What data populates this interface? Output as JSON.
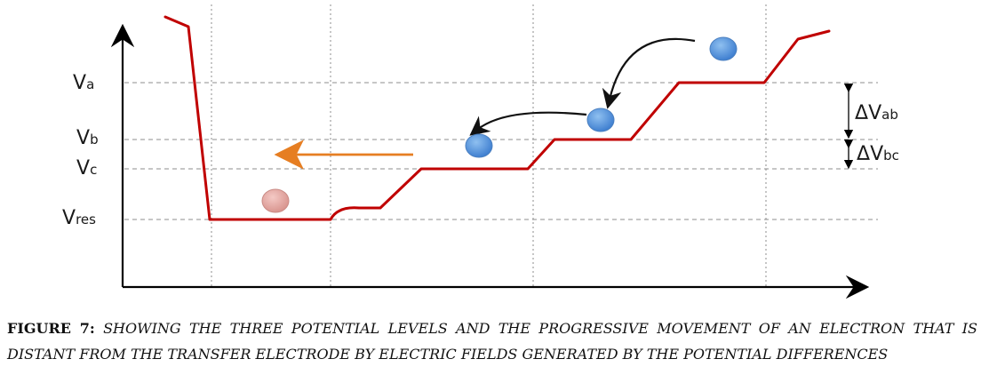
{
  "levels": [
    {
      "id": "Va",
      "main": "V",
      "sub": "a"
    },
    {
      "id": "Vb",
      "main": "V",
      "sub": "b"
    },
    {
      "id": "Vc",
      "main": "V",
      "sub": "c"
    },
    {
      "id": "Vres",
      "main": "V",
      "sub": "res"
    }
  ],
  "differences": [
    {
      "id": "Vab",
      "delta": "Δ",
      "main": "V",
      "sub": "ab"
    },
    {
      "id": "Vbc",
      "delta": "Δ",
      "main": "V",
      "sub": "bc"
    }
  ],
  "colors": {
    "potential_curve": "#c00000",
    "axis": "#000000",
    "gridline": "#8c8c8c",
    "electron": "#5b9bd5",
    "electron_at_rest": "#e6a8a3",
    "field_arrow": "#111111",
    "transfer_arrow": "#e67e22"
  },
  "caption": {
    "label": "FIGURE 7:",
    "text": "SHOWING THE THREE POTENTIAL LEVELS AND THE PROGRESSIVE MOVEMENT OF AN ELECTRON THAT IS DISTANT FROM THE TRANSFER ELECTRODE BY ELECTRIC FIELDS GENERATED BY THE POTENTIAL DIFFERENCES"
  }
}
